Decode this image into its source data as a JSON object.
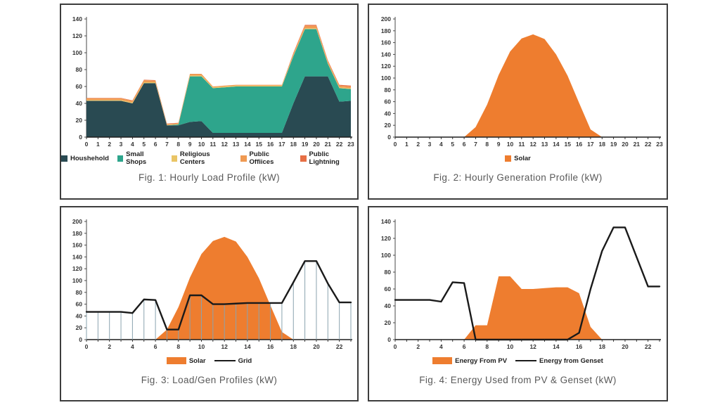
{
  "page": {
    "background": "#ffffff",
    "panel_border": "#3d3d3d"
  },
  "chart_data": [
    {
      "type": "area",
      "subtype": "stacked",
      "title": "Fig. 1: Hourly Load Profile (kW)",
      "xlabel": "",
      "ylabel": "",
      "x": [
        0,
        1,
        2,
        3,
        4,
        5,
        6,
        7,
        8,
        9,
        10,
        11,
        12,
        13,
        14,
        15,
        16,
        17,
        18,
        19,
        20,
        21,
        22,
        23
      ],
      "x_tick_step": 1,
      "ylim": [
        0,
        140
      ],
      "ytick": 20,
      "grid": false,
      "legend_position": "bottom",
      "series": [
        {
          "name": "Houshehold",
          "type": "area-stack",
          "swatch": "square",
          "color": "#294A52",
          "values": [
            43,
            43,
            43,
            43,
            40,
            64,
            64,
            14,
            14,
            18,
            19,
            5,
            5,
            5,
            5,
            5,
            5,
            5,
            40,
            72,
            72,
            72,
            42,
            43
          ]
        },
        {
          "name": "Small Shops",
          "type": "area-stack",
          "swatch": "square",
          "color": "#2EA58C",
          "values": [
            0,
            0,
            0,
            0,
            0,
            0,
            0,
            0,
            1,
            54,
            53,
            53,
            54,
            55,
            55,
            55,
            55,
            55,
            56,
            56,
            56,
            15,
            16,
            14
          ]
        },
        {
          "name": "Religious Centers",
          "type": "area-stack",
          "swatch": "square",
          "color": "#EAC566",
          "values": [
            1,
            1,
            1,
            1,
            1,
            1,
            1,
            0.5,
            0.5,
            1,
            1,
            1,
            1,
            1,
            1,
            1,
            1,
            1,
            1,
            1,
            1,
            1,
            1,
            1
          ]
        },
        {
          "name": "Public Offiices",
          "type": "area-stack",
          "swatch": "square",
          "color": "#F09A52",
          "values": [
            2,
            2,
            2,
            2,
            2,
            2.5,
            2,
            1,
            1,
            2,
            2,
            1,
            1,
            1,
            1,
            1,
            1,
            1,
            2,
            3,
            3,
            2,
            2,
            2
          ]
        },
        {
          "name": "Public Lightning",
          "type": "area-stack",
          "swatch": "square",
          "color": "#E76F45",
          "values": [
            0.5,
            0.5,
            0.5,
            0.5,
            0.5,
            0.5,
            0.5,
            0.5,
            0.5,
            0,
            0,
            0,
            0,
            0,
            0,
            0,
            0,
            0,
            1,
            1,
            1,
            1,
            1,
            1
          ]
        }
      ]
    },
    {
      "type": "area",
      "title": "Fig. 2: Hourly Generation Profile (kW)",
      "xlabel": "",
      "ylabel": "",
      "x": [
        0,
        1,
        2,
        3,
        4,
        5,
        6,
        7,
        8,
        9,
        10,
        11,
        12,
        13,
        14,
        15,
        16,
        17,
        18,
        19,
        20,
        21,
        22,
        23
      ],
      "x_tick_step": 1,
      "ylim": [
        0,
        200
      ],
      "ytick": 20,
      "grid": false,
      "legend_position": "bottom",
      "series": [
        {
          "name": "Solar",
          "type": "area",
          "swatch": "square",
          "color": "#EE7D2F",
          "values": [
            0,
            0,
            0,
            0,
            0,
            0,
            0,
            17,
            55,
            105,
            145,
            167,
            174,
            166,
            140,
            104,
            58,
            13,
            0,
            0,
            0,
            0,
            0,
            0
          ]
        }
      ]
    },
    {
      "type": "line-area",
      "title": "Fig. 3: Load/Gen Profiles (kW)",
      "xlabel": "",
      "ylabel": "",
      "x": [
        0,
        1,
        2,
        3,
        4,
        5,
        6,
        7,
        8,
        9,
        10,
        11,
        12,
        13,
        14,
        15,
        16,
        17,
        18,
        19,
        20,
        21,
        22,
        23
      ],
      "x_tick_step": 2,
      "ylim": [
        0,
        200
      ],
      "ytick": 20,
      "grid": false,
      "legend_position": "bottom",
      "series": [
        {
          "name": "Solar",
          "type": "area",
          "swatch": "rect",
          "color": "#EE7D2F",
          "values": [
            0,
            0,
            0,
            0,
            0,
            0,
            0,
            17,
            55,
            105,
            145,
            167,
            174,
            166,
            140,
            104,
            58,
            13,
            0,
            0,
            0,
            0,
            0,
            0
          ]
        },
        {
          "name": "Grid",
          "type": "line",
          "swatch": "line",
          "color": "#1a1a1a",
          "stems": true,
          "stem_color": "#8AA3AF",
          "values": [
            47,
            47,
            47,
            47,
            45,
            68,
            67,
            17,
            17,
            75,
            75,
            60,
            60,
            61,
            62,
            62,
            62,
            62,
            97,
            133,
            133,
            95,
            63,
            63
          ]
        }
      ]
    },
    {
      "type": "line-area",
      "title": "Fig. 4: Energy Used from PV & Genset (kW)",
      "xlabel": "",
      "ylabel": "",
      "x": [
        0,
        1,
        2,
        3,
        4,
        5,
        6,
        7,
        8,
        9,
        10,
        11,
        12,
        13,
        14,
        15,
        16,
        17,
        18,
        19,
        20,
        21,
        22,
        23
      ],
      "x_tick_step": 2,
      "ylim": [
        0,
        140
      ],
      "ytick": 20,
      "grid": false,
      "legend_position": "bottom",
      "series": [
        {
          "name": "Energy From PV",
          "type": "area",
          "swatch": "rect",
          "color": "#EE7D2F",
          "values": [
            0,
            0,
            0,
            0,
            0,
            0,
            0,
            17,
            17,
            75,
            75,
            60,
            60,
            61,
            62,
            62,
            55,
            15,
            0,
            0,
            0,
            0,
            0,
            0
          ]
        },
        {
          "name": "Energy from Genset",
          "type": "line",
          "swatch": "line",
          "color": "#1a1a1a",
          "values": [
            47,
            47,
            47,
            47,
            45,
            68,
            67,
            0,
            0,
            0,
            0,
            0,
            0,
            0,
            0,
            0,
            8,
            60,
            105,
            133,
            133,
            98,
            63,
            63
          ]
        }
      ]
    }
  ]
}
